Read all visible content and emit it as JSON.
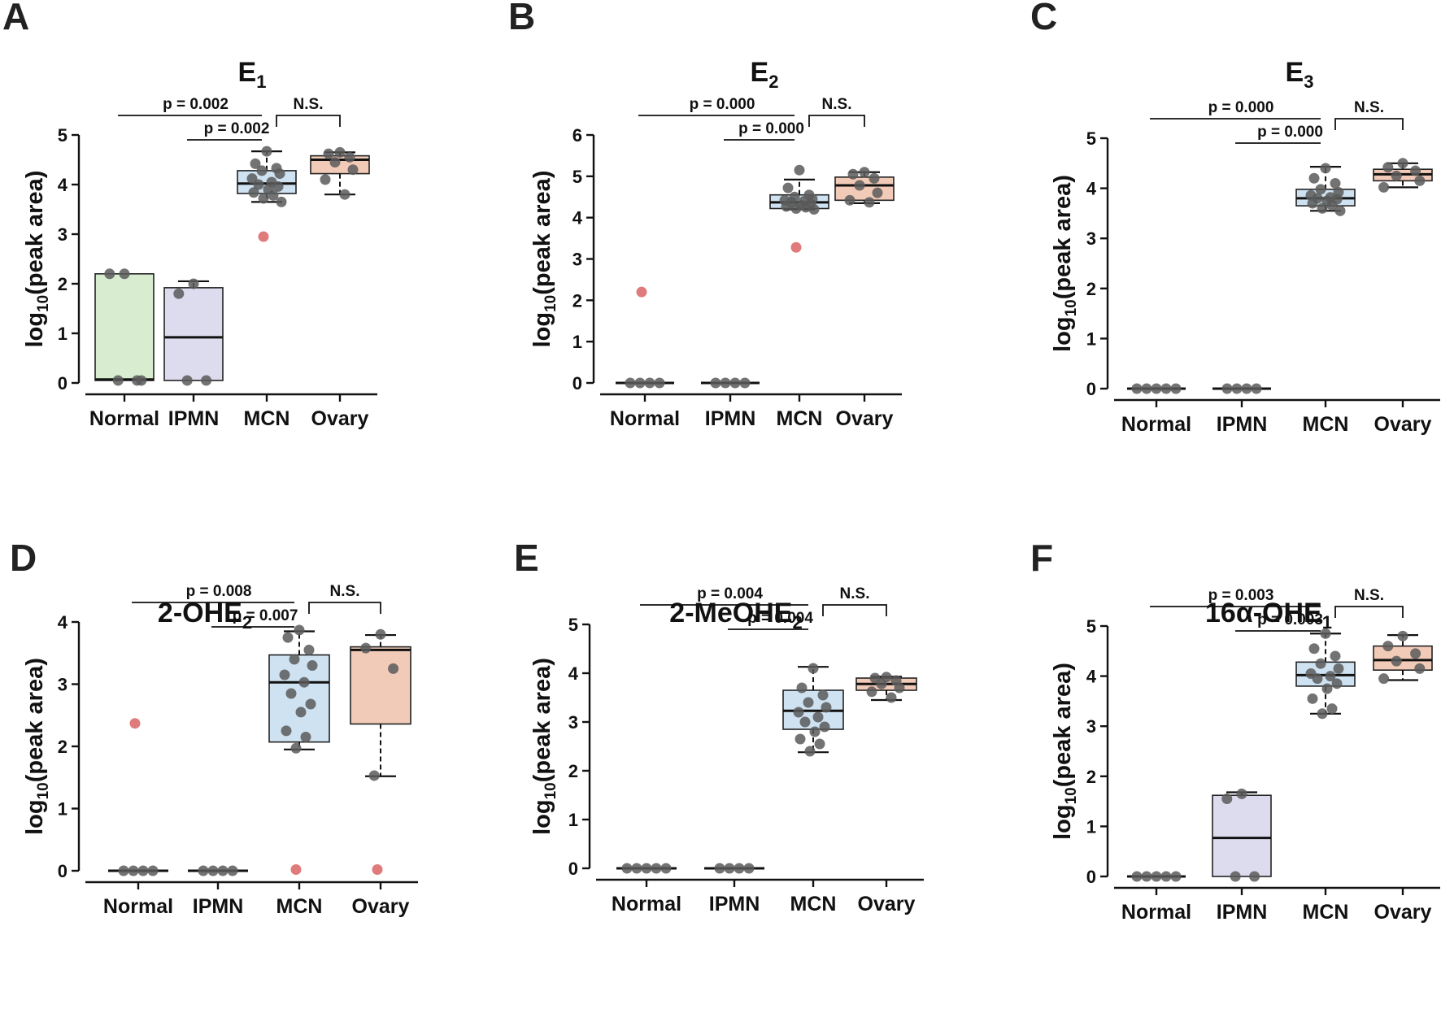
{
  "colors": {
    "Normal": "#d8ecd0",
    "IPMN": "#dcdcee",
    "MCN": "#cfe2f1",
    "Ovary": "#f2cbb8",
    "outlier": "#e07b7b",
    "point": "#5b5b5b"
  },
  "chart_data": [
    {
      "panel": "A",
      "type": "box",
      "title_main": "E",
      "title_sub": "1",
      "ylabel_main": "log",
      "ylabel_sub": "10",
      "ylabel_rest": "(peak area)",
      "categories": [
        "Normal",
        "IPMN",
        "MCN",
        "Ovary"
      ],
      "ylim": [
        0,
        5
      ],
      "yticks": [
        0,
        1,
        2,
        3,
        4,
        5
      ],
      "groups": [
        {
          "q1": 0.05,
          "median": 0.07,
          "q3": 2.2,
          "wlo": null,
          "whi": null,
          "points": [
            2.2,
            2.2,
            0.05,
            0.05,
            0.05
          ],
          "outliers": []
        },
        {
          "q1": 0.05,
          "median": 0.92,
          "q3": 1.92,
          "wlo": null,
          "whi": 2.05,
          "points": [
            2.0,
            1.8,
            0.05,
            0.05
          ],
          "outliers": []
        },
        {
          "q1": 3.82,
          "median": 4.02,
          "q3": 4.28,
          "wlo": 3.65,
          "whi": 4.67,
          "points": [
            4.67,
            4.42,
            4.33,
            4.28,
            4.22,
            4.12,
            4.05,
            4.0,
            3.96,
            3.9,
            3.84,
            3.78,
            3.72,
            3.65
          ],
          "outliers": [
            2.95
          ]
        },
        {
          "q1": 4.22,
          "median": 4.5,
          "q3": 4.58,
          "wlo": 3.8,
          "whi": 4.65,
          "points": [
            4.65,
            4.62,
            4.55,
            4.45,
            4.3,
            4.1,
            3.8
          ],
          "outliers": []
        }
      ],
      "comparisons": [
        {
          "from": 0,
          "to": 2,
          "label": "p = 0.002",
          "level": 1,
          "bracket": false
        },
        {
          "from": 1,
          "to": 2,
          "label": "p = 0.002",
          "level": 0,
          "bracket": false
        },
        {
          "from": 2,
          "to": 3,
          "label": "N.S.",
          "level": 1,
          "bracket": true
        }
      ]
    },
    {
      "panel": "B",
      "type": "box",
      "title_main": "E",
      "title_sub": "2",
      "ylabel_main": "log",
      "ylabel_sub": "10",
      "ylabel_rest": "(peak area)",
      "categories": [
        "Normal",
        "IPMN",
        "MCN",
        "Ovary"
      ],
      "ylim": [
        0,
        6
      ],
      "yticks": [
        0,
        1,
        2,
        3,
        4,
        5,
        6
      ],
      "groups": [
        {
          "q1": 0,
          "median": 0,
          "q3": 0,
          "wlo": null,
          "whi": null,
          "points": [
            0,
            0,
            0,
            0
          ],
          "outliers": [
            2.2
          ]
        },
        {
          "q1": 0,
          "median": 0,
          "q3": 0,
          "wlo": null,
          "whi": null,
          "points": [
            0,
            0,
            0,
            0
          ],
          "outliers": []
        },
        {
          "q1": 4.22,
          "median": 4.37,
          "q3": 4.55,
          "wlo": 4.2,
          "whi": 4.92,
          "points": [
            5.15,
            4.72,
            4.55,
            4.5,
            4.45,
            4.42,
            4.4,
            4.37,
            4.33,
            4.3,
            4.27,
            4.25,
            4.22,
            4.2
          ],
          "outliers": [
            3.28
          ]
        },
        {
          "q1": 4.42,
          "median": 4.78,
          "q3": 4.98,
          "wlo": 4.35,
          "whi": 5.1,
          "points": [
            5.1,
            5.05,
            4.95,
            4.78,
            4.6,
            4.42,
            4.37
          ],
          "outliers": []
        }
      ],
      "comparisons": [
        {
          "from": 0,
          "to": 2,
          "label": "p = 0.000",
          "level": 1,
          "bracket": false
        },
        {
          "from": 1,
          "to": 2,
          "label": "p = 0.000",
          "level": 0,
          "bracket": false
        },
        {
          "from": 2,
          "to": 3,
          "label": "N.S.",
          "level": 1,
          "bracket": true
        }
      ]
    },
    {
      "panel": "C",
      "type": "box",
      "title_main": "E",
      "title_sub": "3",
      "ylabel_main": "log",
      "ylabel_sub": "10",
      "ylabel_rest": "(peak area)",
      "categories": [
        "Normal",
        "IPMN",
        "MCN",
        "Ovary"
      ],
      "ylim": [
        0,
        5
      ],
      "yticks": [
        0,
        1,
        2,
        3,
        4,
        5
      ],
      "groups": [
        {
          "q1": 0,
          "median": 0,
          "q3": 0,
          "wlo": null,
          "whi": null,
          "points": [
            0,
            0,
            0,
            0,
            0
          ],
          "outliers": []
        },
        {
          "q1": 0,
          "median": 0,
          "q3": 0,
          "wlo": null,
          "whi": null,
          "points": [
            0,
            0,
            0,
            0
          ],
          "outliers": []
        },
        {
          "q1": 3.65,
          "median": 3.8,
          "q3": 3.98,
          "wlo": 3.55,
          "whi": 4.43,
          "points": [
            4.4,
            4.2,
            4.1,
            3.98,
            3.92,
            3.86,
            3.82,
            3.8,
            3.78,
            3.75,
            3.7,
            3.66,
            3.6,
            3.55
          ],
          "outliers": []
        },
        {
          "q1": 4.15,
          "median": 4.28,
          "q3": 4.38,
          "wlo": 4.02,
          "whi": 4.5,
          "points": [
            4.5,
            4.42,
            4.35,
            4.25,
            4.15,
            4.02
          ],
          "outliers": []
        }
      ],
      "comparisons": [
        {
          "from": 0,
          "to": 2,
          "label": "p = 0.000",
          "level": 1,
          "bracket": false
        },
        {
          "from": 1,
          "to": 2,
          "label": "p = 0.000",
          "level": 0,
          "bracket": false
        },
        {
          "from": 2,
          "to": 3,
          "label": "N.S.",
          "level": 1,
          "bracket": true
        }
      ]
    },
    {
      "panel": "D",
      "type": "box",
      "title_main": "2-OHE",
      "title_sub": "2",
      "ylabel_main": "log",
      "ylabel_sub": "10",
      "ylabel_rest": "(peak area)",
      "categories": [
        "Normal",
        "IPMN",
        "MCN",
        "Ovary"
      ],
      "ylim": [
        0,
        4
      ],
      "yticks": [
        0,
        1,
        2,
        3,
        4
      ],
      "groups": [
        {
          "q1": 0,
          "median": 0,
          "q3": 0,
          "wlo": null,
          "whi": null,
          "points": [
            0,
            0,
            0,
            0
          ],
          "outliers": [
            2.37
          ]
        },
        {
          "q1": 0,
          "median": 0,
          "q3": 0,
          "wlo": null,
          "whi": null,
          "points": [
            0,
            0,
            0,
            0
          ],
          "outliers": []
        },
        {
          "q1": 2.07,
          "median": 3.03,
          "q3": 3.47,
          "wlo": 1.95,
          "whi": 3.85,
          "points": [
            3.87,
            3.75,
            3.55,
            3.4,
            3.3,
            3.15,
            3.03,
            2.85,
            2.68,
            2.55,
            2.25,
            2.15,
            1.97
          ],
          "outliers": [
            0.02
          ]
        },
        {
          "q1": 2.36,
          "median": 3.55,
          "q3": 3.6,
          "wlo": 1.52,
          "whi": 3.79,
          "points": [
            3.8,
            3.58,
            3.25,
            1.53
          ],
          "outliers": [
            0.02
          ]
        }
      ],
      "comparisons": [
        {
          "from": 0,
          "to": 2,
          "label": "p = 0.008",
          "level": 1,
          "bracket": false
        },
        {
          "from": 1,
          "to": 2,
          "label": "p = 0.007",
          "level": 0,
          "bracket": false
        },
        {
          "from": 2,
          "to": 3,
          "label": "N.S.",
          "level": 1,
          "bracket": true
        }
      ]
    },
    {
      "panel": "E",
      "type": "box",
      "title_main": "2-MeOHE",
      "title_sub": "2",
      "ylabel_main": "log",
      "ylabel_sub": "10",
      "ylabel_rest": "(peak area)",
      "categories": [
        "Normal",
        "IPMN",
        "MCN",
        "Ovary"
      ],
      "ylim": [
        0,
        5
      ],
      "yticks": [
        0,
        1,
        2,
        3,
        4,
        5
      ],
      "groups": [
        {
          "q1": 0,
          "median": 0,
          "q3": 0,
          "wlo": null,
          "whi": null,
          "points": [
            0,
            0,
            0,
            0,
            0
          ],
          "outliers": []
        },
        {
          "q1": 0,
          "median": 0,
          "q3": 0,
          "wlo": null,
          "whi": null,
          "points": [
            0,
            0,
            0,
            0
          ],
          "outliers": []
        },
        {
          "q1": 2.85,
          "median": 3.23,
          "q3": 3.65,
          "wlo": 2.38,
          "whi": 4.13,
          "points": [
            4.1,
            3.7,
            3.55,
            3.4,
            3.3,
            3.2,
            3.1,
            3.0,
            2.9,
            2.8,
            2.65,
            2.55,
            2.4
          ],
          "outliers": []
        },
        {
          "q1": 3.65,
          "median": 3.78,
          "q3": 3.9,
          "wlo": 3.45,
          "whi": 3.93,
          "points": [
            3.92,
            3.9,
            3.85,
            3.78,
            3.7,
            3.62,
            3.5
          ],
          "outliers": []
        }
      ],
      "comparisons": [
        {
          "from": 0,
          "to": 2,
          "label": "p = 0.004",
          "level": 1,
          "bracket": false
        },
        {
          "from": 1,
          "to": 2,
          "label": "p = 0.004",
          "level": 0,
          "bracket": false
        },
        {
          "from": 2,
          "to": 3,
          "label": "N.S.",
          "level": 1,
          "bracket": true
        }
      ]
    },
    {
      "panel": "F",
      "type": "box",
      "title_main": "16α-OHE",
      "title_sub": "1",
      "ylabel_main": "log",
      "ylabel_sub": "10",
      "ylabel_rest": "(peak area)",
      "categories": [
        "Normal",
        "IPMN",
        "MCN",
        "Ovary"
      ],
      "ylim": [
        0,
        5
      ],
      "yticks": [
        0,
        1,
        2,
        3,
        4,
        5
      ],
      "groups": [
        {
          "q1": 0,
          "median": 0,
          "q3": 0,
          "wlo": null,
          "whi": null,
          "points": [
            0,
            0,
            0,
            0,
            0
          ],
          "outliers": []
        },
        {
          "q1": 0,
          "median": 0.77,
          "q3": 1.62,
          "wlo": null,
          "whi": 1.68,
          "points": [
            1.65,
            1.55,
            0,
            0
          ],
          "outliers": []
        },
        {
          "q1": 3.8,
          "median": 4.02,
          "q3": 4.28,
          "wlo": 3.25,
          "whi": 4.85,
          "points": [
            4.85,
            4.55,
            4.4,
            4.25,
            4.15,
            4.05,
            4.0,
            3.95,
            3.85,
            3.75,
            3.55,
            3.35,
            3.25
          ],
          "outliers": []
        },
        {
          "q1": 4.12,
          "median": 4.32,
          "q3": 4.6,
          "wlo": 3.92,
          "whi": 4.82,
          "points": [
            4.8,
            4.6,
            4.45,
            4.3,
            4.15,
            3.95
          ],
          "outliers": []
        }
      ],
      "comparisons": [
        {
          "from": 0,
          "to": 2,
          "label": "p = 0.003",
          "level": 1,
          "bracket": false
        },
        {
          "from": 1,
          "to": 2,
          "label": "p = 0.003",
          "level": 0,
          "bracket": false
        },
        {
          "from": 2,
          "to": 3,
          "label": "N.S.",
          "level": 1,
          "bracket": true
        }
      ]
    }
  ]
}
